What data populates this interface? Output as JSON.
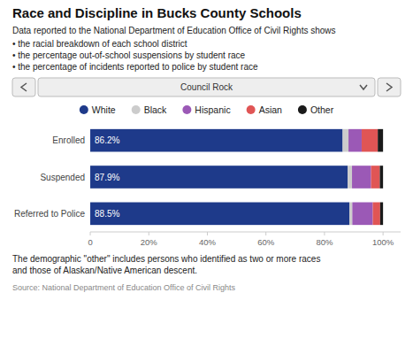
{
  "chart_data": {
    "type": "bar",
    "orientation": "horizontal",
    "stacked": true,
    "grid": false,
    "legend": "top",
    "title": "Race and Discipline in Bucks County Schools",
    "subtitle": "Data reported to the National Department of Education Office of Civil Rights shows",
    "annotations": [
      "• the racial breakdown of each school district",
      "• the percentage out-of-school suspensions by student race",
      "• the percentage of incidents reported to police by student race",
      "Council Rock",
      "The demographic \"other\" includes persons who identified as two or more races",
      "and those of Alaskan/Native American descent.",
      "Source: National Department of Education Office of Civil Rights"
    ],
    "categories": [
      "Enrolled",
      "Suspended",
      "Referred to Police"
    ],
    "series": [
      {
        "name": "White",
        "color": "#1e3a8a",
        "values": [
          86.2,
          87.9,
          88.5
        ],
        "value_labels": [
          "86.2%",
          "87.9%",
          "88.5%"
        ]
      },
      {
        "name": "Black",
        "color": "#cccccc",
        "values": [
          2.0,
          1.5,
          1.0
        ]
      },
      {
        "name": "Hispanic",
        "color": "#9b59b6",
        "values": [
          4.5,
          6.5,
          7.0
        ]
      },
      {
        "name": "Asian",
        "color": "#e05555",
        "values": [
          5.5,
          3.0,
          2.5
        ]
      },
      {
        "name": "Other",
        "color": "#1a1a1a",
        "values": [
          1.8,
          1.1,
          1.0
        ]
      }
    ],
    "xlim": [
      0,
      106
    ],
    "xticks": [
      0,
      {
        "value": 20,
        "label": "20%"
      },
      {
        "value": 40,
        "label": "40%"
      },
      {
        "value": 60,
        "label": "60%"
      },
      {
        "value": 80,
        "label": "80%"
      },
      {
        "value": 100,
        "label": "100%"
      }
    ]
  }
}
